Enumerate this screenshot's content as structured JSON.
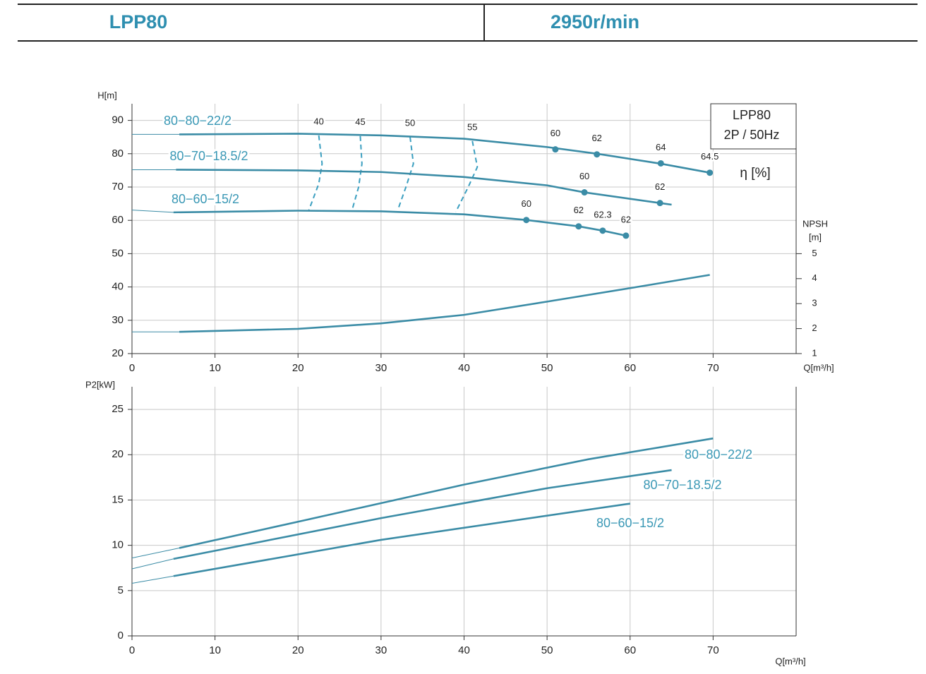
{
  "header": {
    "model": "LPP80",
    "speed": "2950r/min"
  },
  "chart_data": [
    {
      "type": "line",
      "ylabel": "H[m]",
      "xlabel": "Q[m³/h]",
      "y2label": [
        "NPSH",
        "[m]"
      ],
      "xlim": [
        0,
        80
      ],
      "ylim": [
        20,
        95
      ],
      "y2lim": [
        1,
        11
      ],
      "xticks": [
        0,
        10,
        20,
        30,
        40,
        50,
        60,
        70
      ],
      "yticks": [
        20,
        30,
        40,
        50,
        60,
        70,
        80,
        90
      ],
      "y2ticks": [
        1,
        2,
        3,
        4,
        5
      ],
      "grid": true,
      "legend_box": [
        "LPP80",
        "2P / 50Hz"
      ],
      "efficiency_label": "η [%]",
      "series": [
        {
          "name": "80−80−22/2",
          "color": "#3b8ca6",
          "x": [
            0,
            5.7,
            20,
            30,
            40,
            50,
            56,
            63.7,
            69.6
          ],
          "values": [
            85.8,
            85.8,
            86,
            85.5,
            84.5,
            82,
            80,
            77,
            74.3
          ],
          "point_x": [
            51,
            56,
            63.7,
            69.6
          ],
          "point_values": [
            81.3,
            79.8,
            77.1,
            74.3
          ],
          "efficiency": [
            60,
            62,
            64,
            64.5
          ]
        },
        {
          "name": "80−70−18.5/2",
          "color": "#3b8ca6",
          "x": [
            0,
            5.3,
            20,
            30,
            40,
            50,
            54.5,
            63.6,
            65
          ],
          "values": [
            75.2,
            75.2,
            75,
            74.5,
            73,
            70.5,
            68.4,
            65.2,
            64.7
          ],
          "point_x": [
            54.5,
            63.6
          ],
          "point_values": [
            68.4,
            65.2
          ],
          "efficiency": [
            60,
            62
          ]
        },
        {
          "name": "80−60−15/2",
          "color": "#3b8ca6",
          "x": [
            0,
            5,
            20,
            30,
            40,
            47.5,
            53.8,
            56.7,
            59.5
          ],
          "values": [
            63.1,
            62.4,
            62.9,
            62.7,
            61.8,
            60.1,
            58.2,
            56.9,
            55.4
          ],
          "point_x": [
            47.5,
            53.8,
            56.7,
            59.5
          ],
          "point_values": [
            60.1,
            58.2,
            56.9,
            55.4
          ],
          "efficiency": [
            60,
            62,
            62.3,
            62
          ]
        },
        {
          "axis": "y2",
          "color": "#3b8ca6",
          "x": [
            0,
            5.7,
            20,
            30,
            40,
            50,
            60,
            69.6
          ],
          "values": [
            1.87,
            1.87,
            1.99,
            2.21,
            2.55,
            3.08,
            3.62,
            4.15
          ]
        }
      ],
      "iso_efficiency": [
        {
          "efficiency": 40,
          "x": [
            22.5,
            22.9,
            22.5,
            21.3
          ],
          "values": [
            85.5,
            77,
            71,
            63
          ]
        },
        {
          "efficiency": 45,
          "x": [
            27.5,
            27.7,
            27.3,
            26.5
          ],
          "values": [
            85.3,
            77,
            70,
            63
          ]
        },
        {
          "efficiency": 50,
          "x": [
            33.5,
            33.9,
            33,
            32
          ],
          "values": [
            85,
            77,
            70,
            63
          ]
        },
        {
          "efficiency": 55,
          "x": [
            41,
            41.6,
            40.5,
            39
          ],
          "values": [
            83.8,
            76,
            70,
            62.5
          ]
        }
      ]
    },
    {
      "type": "line",
      "ylabel": "P2[kW]",
      "xlabel": "Q[m³/h]",
      "xlim": [
        0,
        80
      ],
      "ylim": [
        0,
        27.5
      ],
      "xticks": [
        0,
        10,
        20,
        30,
        40,
        50,
        60,
        70
      ],
      "yticks": [
        0,
        5,
        10,
        15,
        20,
        25
      ],
      "grid": true,
      "series": [
        {
          "name": "80−80−22/2",
          "color": "#3b8ca6",
          "x": [
            0,
            5.7,
            20,
            40,
            55,
            70
          ],
          "values": [
            8.6,
            9.7,
            12.6,
            16.7,
            19.5,
            21.8
          ]
        },
        {
          "name": "80−70−18.5/2",
          "color": "#3b8ca6",
          "x": [
            0,
            5,
            30,
            50,
            65
          ],
          "values": [
            7.4,
            8.5,
            13,
            16.3,
            18.3
          ]
        },
        {
          "name": "80−60−15/2",
          "color": "#3b8ca6",
          "x": [
            0,
            5,
            30,
            60
          ],
          "values": [
            5.8,
            6.6,
            10.6,
            14.6
          ]
        }
      ]
    }
  ]
}
